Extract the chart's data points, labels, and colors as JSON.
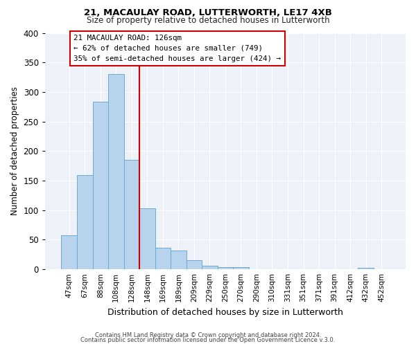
{
  "title": "21, MACAULAY ROAD, LUTTERWORTH, LE17 4XB",
  "subtitle": "Size of property relative to detached houses in Lutterworth",
  "xlabel": "Distribution of detached houses by size in Lutterworth",
  "ylabel": "Number of detached properties",
  "bin_labels": [
    "47sqm",
    "67sqm",
    "88sqm",
    "108sqm",
    "128sqm",
    "148sqm",
    "169sqm",
    "189sqm",
    "209sqm",
    "229sqm",
    "250sqm",
    "270sqm",
    "290sqm",
    "310sqm",
    "331sqm",
    "351sqm",
    "371sqm",
    "391sqm",
    "412sqm",
    "432sqm",
    "452sqm"
  ],
  "bar_values": [
    57,
    160,
    284,
    330,
    185,
    103,
    37,
    32,
    16,
    6,
    4,
    4,
    0,
    0,
    0,
    0,
    0,
    0,
    0,
    3,
    0
  ],
  "bar_color": "#b8d4ec",
  "bar_edge_color": "#6aaad4",
  "vline_index": 4,
  "vline_color": "#cc0000",
  "annotation_title": "21 MACAULAY ROAD: 126sqm",
  "annotation_line1": "← 62% of detached houses are smaller (749)",
  "annotation_line2": "35% of semi-detached houses are larger (424) →",
  "annotation_box_edgecolor": "#cc0000",
  "ylim": [
    0,
    400
  ],
  "yticks": [
    0,
    50,
    100,
    150,
    200,
    250,
    300,
    350,
    400
  ],
  "background_color": "#eef2f8",
  "grid_color": "#ffffff",
  "footer_line1": "Contains HM Land Registry data © Crown copyright and database right 2024.",
  "footer_line2": "Contains public sector information licensed under the Open Government Licence v.3.0."
}
